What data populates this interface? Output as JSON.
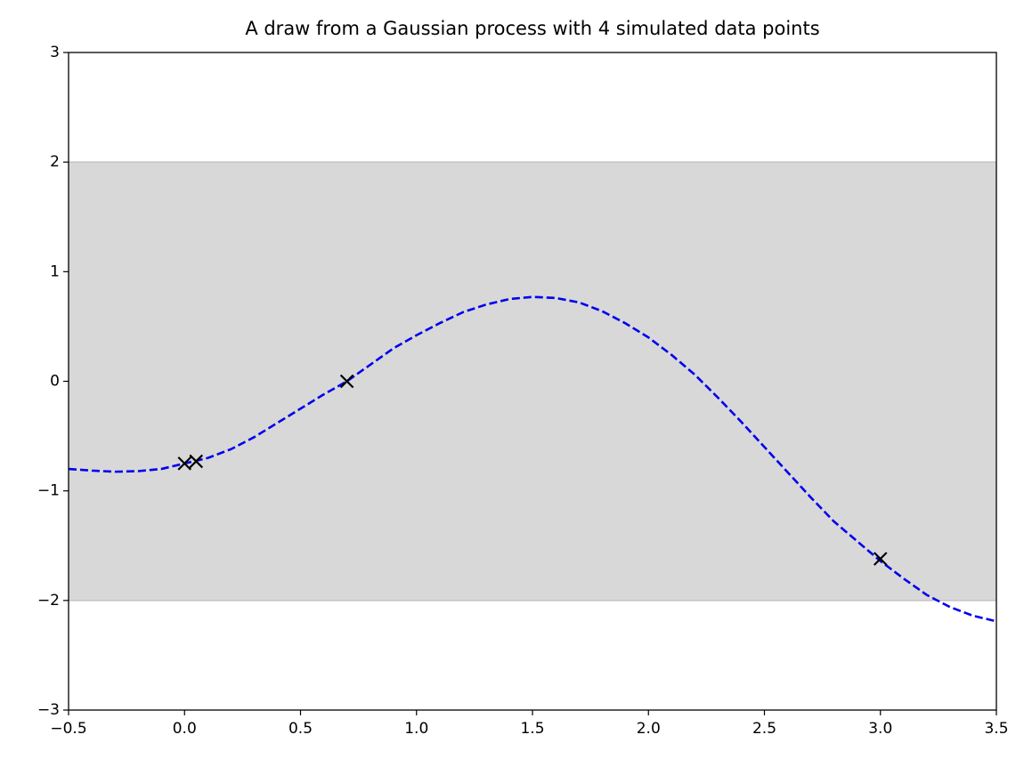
{
  "chart_data": {
    "type": "line",
    "title": "A draw from a Gaussian process with 4 simulated data points",
    "xlim": [
      -0.5,
      3.5
    ],
    "ylim": [
      -3,
      3
    ],
    "xticks": [
      {
        "value": -0.5,
        "label": "−0.5"
      },
      {
        "value": 0,
        "label": "0.0"
      },
      0.5,
      {
        "value": 1,
        "label": "1.0"
      },
      1.5,
      {
        "value": 2,
        "label": "2.0"
      },
      2.5,
      {
        "value": 3,
        "label": "3.0"
      },
      3.5
    ],
    "yticks": [
      {
        "value": -3,
        "label": "−3"
      },
      {
        "value": -2,
        "label": "−2"
      },
      {
        "value": -1,
        "label": "−1"
      },
      0,
      1,
      2,
      3
    ],
    "band": {
      "lower": -2,
      "upper": 2,
      "color": "#d8d8d8"
    },
    "series": [
      {
        "type": "line",
        "color": "#0000ee",
        "dashed": true,
        "x": [
          -0.5,
          -0.4,
          -0.3,
          -0.2,
          -0.1,
          0,
          0.1,
          0.2,
          0.3,
          0.4,
          0.5,
          0.6,
          0.7,
          0.8,
          0.9,
          1,
          1.1,
          1.2,
          1.3,
          1.4,
          1.5,
          1.6,
          1.7,
          1.8,
          1.9,
          2,
          2.1,
          2.2,
          2.3,
          2.4,
          2.5,
          2.6,
          2.7,
          2.8,
          2.9,
          3,
          3.1,
          3.2,
          3.3,
          3.4,
          3.5
        ],
        "values": [
          -0.8,
          -0.815,
          -0.825,
          -0.82,
          -0.8,
          -0.75,
          -0.7,
          -0.62,
          -0.51,
          -0.38,
          -0.25,
          -0.12,
          0,
          0.15,
          0.3,
          0.42,
          0.53,
          0.63,
          0.7,
          0.75,
          0.77,
          0.76,
          0.72,
          0.64,
          0.53,
          0.4,
          0.24,
          0.06,
          -0.15,
          -0.37,
          -0.6,
          -0.83,
          -1.06,
          -1.28,
          -1.46,
          -1.64,
          -1.8,
          -1.95,
          -2.06,
          -2.14,
          -2.19
        ]
      },
      {
        "type": "scatter",
        "color": "#000000",
        "marker": "x",
        "x": [
          0,
          0.05,
          0.7,
          3.0
        ],
        "values": [
          -0.75,
          -0.73,
          0,
          -1.62
        ]
      }
    ]
  }
}
